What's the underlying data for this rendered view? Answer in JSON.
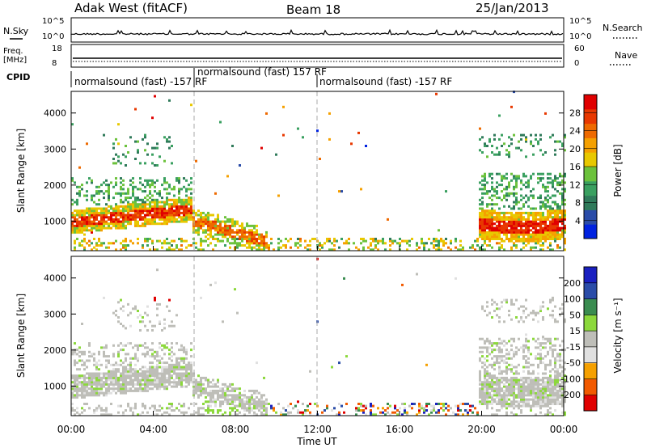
{
  "header": {
    "station": "Adak West (fitACF)",
    "beam": "Beam 18",
    "date": "25/Jan/2013"
  },
  "noise_panel": {
    "left_label": "N.Sky",
    "right_label": "N.Search",
    "left_ticks": [
      "10^5",
      "10^0"
    ],
    "right_ticks": [
      "10^5",
      "10^0"
    ]
  },
  "freq_panel": {
    "left_label_line1": "Freq.",
    "left_label_line2": "[MHz]",
    "right_label": "Nave",
    "left_ticks": [
      "18",
      "8"
    ],
    "right_ticks": [
      "60",
      "0"
    ]
  },
  "cpid": {
    "label": "CPID",
    "segments": [
      {
        "text": "normalsound (fast) -157 RF",
        "start_h": 0
      },
      {
        "text": "normalsound (fast) 157 RF",
        "start_h": 6
      },
      {
        "text": "normalsound (fast) -157 RF",
        "start_h": 12
      }
    ]
  },
  "colors": {
    "power": [
      "#0022e0",
      "#2a4ca8",
      "#2f7a5a",
      "#3aa060",
      "#6cc23c",
      "#e8c800",
      "#f5a000",
      "#ee6a00",
      "#e83800",
      "#e00000"
    ],
    "velocity": [
      "#e00000",
      "#f25a00",
      "#f5a000",
      "#e0e0e0",
      "#bebeb8",
      "#8cd83c",
      "#3a8c50",
      "#2a4ca8",
      "#1a20c0"
    ]
  },
  "chart_data": [
    {
      "type": "heatmap",
      "name": "power",
      "xlabel": "",
      "ylabel": "Slant Range [km]",
      "x_unit": "hours UT",
      "xlim": [
        0,
        24
      ],
      "ylim": [
        180,
        4600
      ],
      "y_ticks": [
        1000,
        2000,
        3000,
        4000
      ],
      "y_tick_labels": [
        "1000",
        "2000",
        "3000",
        "4000"
      ],
      "colorbar": {
        "label": "Power [dB]",
        "ticks": [
          "4",
          "8",
          "12",
          "16",
          "20",
          "24",
          "28"
        ],
        "range": [
          0,
          30
        ]
      }
    },
    {
      "type": "heatmap",
      "name": "velocity",
      "xlabel": "Time UT",
      "ylabel": "Slant Range [km]",
      "x_unit": "hours UT",
      "xlim": [
        0,
        24
      ],
      "ylim": [
        180,
        4600
      ],
      "y_ticks": [
        1000,
        2000,
        3000,
        4000
      ],
      "y_tick_labels": [
        "1000",
        "2000",
        "3000",
        "4000"
      ],
      "x_tick_labels": [
        "00:00",
        "04:00",
        "08:00",
        "12:00",
        "16:00",
        "20:00",
        "00:00"
      ],
      "colorbar": {
        "label": "Velocity [m s⁻¹]",
        "ticks": [
          "200",
          "100",
          "50",
          "15",
          "-15",
          "-50",
          "-100",
          "-200"
        ]
      }
    }
  ]
}
